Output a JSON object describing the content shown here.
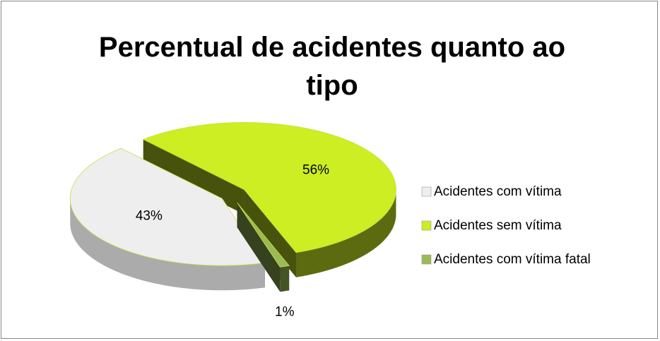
{
  "chart_data": {
    "type": "pie3d",
    "title": "Percentual de acidentes quanto ao tipo",
    "categories": [
      "Acidentes com vítima",
      "Acidentes sem vítima",
      "Acidentes com vítima fatal"
    ],
    "values": [
      43,
      56,
      1
    ],
    "value_labels": [
      "43%",
      "56%",
      "1%"
    ],
    "colors": [
      "#eeeeee",
      "#ccee22",
      "#99bb55"
    ],
    "legend": "right"
  }
}
